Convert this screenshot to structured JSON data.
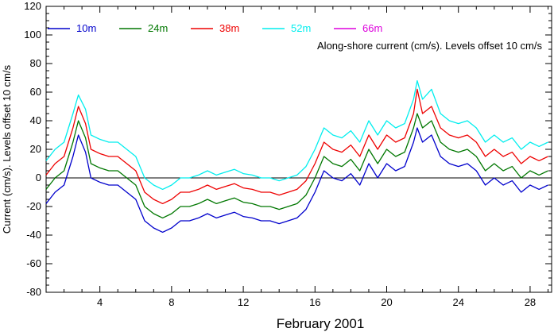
{
  "chart_data": {
    "type": "line",
    "title": "",
    "annotation": "Along-shore current (cm/s). Levels offset 10 cm/s",
    "xlabel": "February 2001",
    "ylabel": "Current (cm/s). Levels offset 10 cm/s",
    "xlim": [
      1,
      29.2
    ],
    "ylim": [
      -80,
      120
    ],
    "x_ticks": [
      4,
      8,
      12,
      16,
      20,
      24,
      28
    ],
    "y_ticks": [
      -80,
      -60,
      -40,
      -20,
      0,
      20,
      40,
      60,
      80,
      100,
      120
    ],
    "zero_line": 0,
    "grid": false,
    "legend_position": "top",
    "series": [
      {
        "name": "10m",
        "color": "#0000cc",
        "points": [
          [
            1.0,
            -18
          ],
          [
            1.5,
            -10
          ],
          [
            2.0,
            -5
          ],
          [
            2.5,
            15
          ],
          [
            2.8,
            30
          ],
          [
            3.2,
            18
          ],
          [
            3.5,
            0
          ],
          [
            4.0,
            -3
          ],
          [
            4.5,
            -5
          ],
          [
            5.0,
            -5
          ],
          [
            5.5,
            -10
          ],
          [
            6.0,
            -15
          ],
          [
            6.5,
            -30
          ],
          [
            7.0,
            -35
          ],
          [
            7.5,
            -38
          ],
          [
            8.0,
            -35
          ],
          [
            8.5,
            -30
          ],
          [
            9.0,
            -30
          ],
          [
            9.5,
            -28
          ],
          [
            10.0,
            -25
          ],
          [
            10.5,
            -28
          ],
          [
            11.0,
            -26
          ],
          [
            11.5,
            -24
          ],
          [
            12.0,
            -27
          ],
          [
            12.5,
            -28
          ],
          [
            13.0,
            -30
          ],
          [
            13.5,
            -30
          ],
          [
            14.0,
            -32
          ],
          [
            14.5,
            -30
          ],
          [
            15.0,
            -28
          ],
          [
            15.5,
            -22
          ],
          [
            16.0,
            -10
          ],
          [
            16.5,
            5
          ],
          [
            17.0,
            0
          ],
          [
            17.5,
            -2
          ],
          [
            18.0,
            3
          ],
          [
            18.5,
            -5
          ],
          [
            19.0,
            10
          ],
          [
            19.5,
            0
          ],
          [
            20.0,
            10
          ],
          [
            20.5,
            5
          ],
          [
            21.0,
            8
          ],
          [
            21.5,
            25
          ],
          [
            21.7,
            35
          ],
          [
            22.0,
            25
          ],
          [
            22.5,
            30
          ],
          [
            23.0,
            15
          ],
          [
            23.5,
            10
          ],
          [
            24.0,
            8
          ],
          [
            24.5,
            10
          ],
          [
            25.0,
            5
          ],
          [
            25.5,
            -5
          ],
          [
            26.0,
            0
          ],
          [
            26.5,
            -5
          ],
          [
            27.0,
            -2
          ],
          [
            27.5,
            -10
          ],
          [
            28.0,
            -5
          ],
          [
            28.5,
            -8
          ],
          [
            29.0,
            -5
          ]
        ]
      },
      {
        "name": "24m",
        "color": "#007700",
        "points": [
          [
            1.0,
            -8
          ],
          [
            1.5,
            0
          ],
          [
            2.0,
            5
          ],
          [
            2.5,
            25
          ],
          [
            2.8,
            40
          ],
          [
            3.2,
            28
          ],
          [
            3.5,
            10
          ],
          [
            4.0,
            7
          ],
          [
            4.5,
            5
          ],
          [
            5.0,
            5
          ],
          [
            5.5,
            0
          ],
          [
            6.0,
            -5
          ],
          [
            6.5,
            -20
          ],
          [
            7.0,
            -25
          ],
          [
            7.5,
            -28
          ],
          [
            8.0,
            -25
          ],
          [
            8.5,
            -20
          ],
          [
            9.0,
            -20
          ],
          [
            9.5,
            -18
          ],
          [
            10.0,
            -15
          ],
          [
            10.5,
            -18
          ],
          [
            11.0,
            -16
          ],
          [
            11.5,
            -14
          ],
          [
            12.0,
            -17
          ],
          [
            12.5,
            -18
          ],
          [
            13.0,
            -20
          ],
          [
            13.5,
            -20
          ],
          [
            14.0,
            -22
          ],
          [
            14.5,
            -20
          ],
          [
            15.0,
            -18
          ],
          [
            15.5,
            -12
          ],
          [
            16.0,
            0
          ],
          [
            16.5,
            15
          ],
          [
            17.0,
            10
          ],
          [
            17.5,
            8
          ],
          [
            18.0,
            13
          ],
          [
            18.5,
            5
          ],
          [
            19.0,
            20
          ],
          [
            19.5,
            10
          ],
          [
            20.0,
            20
          ],
          [
            20.5,
            15
          ],
          [
            21.0,
            18
          ],
          [
            21.5,
            35
          ],
          [
            21.7,
            45
          ],
          [
            22.0,
            35
          ],
          [
            22.5,
            40
          ],
          [
            23.0,
            25
          ],
          [
            23.5,
            20
          ],
          [
            24.0,
            18
          ],
          [
            24.5,
            20
          ],
          [
            25.0,
            15
          ],
          [
            25.5,
            5
          ],
          [
            26.0,
            10
          ],
          [
            26.5,
            5
          ],
          [
            27.0,
            8
          ],
          [
            27.5,
            0
          ],
          [
            28.0,
            5
          ],
          [
            28.5,
            2
          ],
          [
            29.0,
            5
          ]
        ]
      },
      {
        "name": "38m",
        "color": "#ee0000",
        "points": [
          [
            1.0,
            2
          ],
          [
            1.5,
            10
          ],
          [
            2.0,
            15
          ],
          [
            2.5,
            35
          ],
          [
            2.8,
            50
          ],
          [
            3.2,
            38
          ],
          [
            3.5,
            20
          ],
          [
            4.0,
            17
          ],
          [
            4.5,
            15
          ],
          [
            5.0,
            15
          ],
          [
            5.5,
            10
          ],
          [
            6.0,
            5
          ],
          [
            6.5,
            -10
          ],
          [
            7.0,
            -15
          ],
          [
            7.5,
            -18
          ],
          [
            8.0,
            -15
          ],
          [
            8.5,
            -10
          ],
          [
            9.0,
            -10
          ],
          [
            9.5,
            -8
          ],
          [
            10.0,
            -5
          ],
          [
            10.5,
            -8
          ],
          [
            11.0,
            -6
          ],
          [
            11.5,
            -4
          ],
          [
            12.0,
            -7
          ],
          [
            12.5,
            -8
          ],
          [
            13.0,
            -10
          ],
          [
            13.5,
            -10
          ],
          [
            14.0,
            -12
          ],
          [
            14.5,
            -10
          ],
          [
            15.0,
            -8
          ],
          [
            15.5,
            -2
          ],
          [
            16.0,
            10
          ],
          [
            16.5,
            25
          ],
          [
            17.0,
            20
          ],
          [
            17.5,
            18
          ],
          [
            18.0,
            23
          ],
          [
            18.5,
            15
          ],
          [
            19.0,
            30
          ],
          [
            19.5,
            20
          ],
          [
            20.0,
            30
          ],
          [
            20.5,
            25
          ],
          [
            21.0,
            28
          ],
          [
            21.5,
            45
          ],
          [
            21.7,
            62
          ],
          [
            22.0,
            45
          ],
          [
            22.5,
            50
          ],
          [
            23.0,
            35
          ],
          [
            23.5,
            30
          ],
          [
            24.0,
            28
          ],
          [
            24.5,
            30
          ],
          [
            25.0,
            25
          ],
          [
            25.5,
            15
          ],
          [
            26.0,
            20
          ],
          [
            26.5,
            15
          ],
          [
            27.0,
            18
          ],
          [
            27.5,
            10
          ],
          [
            28.0,
            15
          ],
          [
            28.5,
            12
          ],
          [
            29.0,
            15
          ]
        ]
      },
      {
        "name": "52m",
        "color": "#00eeee",
        "points": [
          [
            1.0,
            12
          ],
          [
            1.5,
            20
          ],
          [
            2.0,
            25
          ],
          [
            2.5,
            45
          ],
          [
            2.8,
            58
          ],
          [
            3.2,
            48
          ],
          [
            3.5,
            30
          ],
          [
            4.0,
            27
          ],
          [
            4.5,
            25
          ],
          [
            5.0,
            25
          ],
          [
            5.5,
            20
          ],
          [
            6.0,
            15
          ],
          [
            6.5,
            0
          ],
          [
            7.0,
            -5
          ],
          [
            7.5,
            -8
          ],
          [
            8.0,
            -5
          ],
          [
            8.5,
            0
          ],
          [
            9.0,
            0
          ],
          [
            9.5,
            2
          ],
          [
            10.0,
            5
          ],
          [
            10.5,
            2
          ],
          [
            11.0,
            4
          ],
          [
            11.5,
            6
          ],
          [
            12.0,
            3
          ],
          [
            12.5,
            2
          ],
          [
            13.0,
            0
          ],
          [
            13.5,
            0
          ],
          [
            14.0,
            -2
          ],
          [
            14.5,
            0
          ],
          [
            15.0,
            2
          ],
          [
            15.5,
            8
          ],
          [
            16.0,
            20
          ],
          [
            16.5,
            35
          ],
          [
            17.0,
            30
          ],
          [
            17.5,
            28
          ],
          [
            18.0,
            33
          ],
          [
            18.5,
            25
          ],
          [
            19.0,
            40
          ],
          [
            19.5,
            30
          ],
          [
            20.0,
            40
          ],
          [
            20.5,
            35
          ],
          [
            21.0,
            38
          ],
          [
            21.5,
            55
          ],
          [
            21.7,
            68
          ],
          [
            22.0,
            55
          ],
          [
            22.5,
            62
          ],
          [
            23.0,
            45
          ],
          [
            23.5,
            40
          ],
          [
            24.0,
            38
          ],
          [
            24.5,
            40
          ],
          [
            25.0,
            35
          ],
          [
            25.5,
            25
          ],
          [
            26.0,
            30
          ],
          [
            26.5,
            25
          ],
          [
            27.0,
            28
          ],
          [
            27.5,
            20
          ],
          [
            28.0,
            25
          ],
          [
            28.5,
            22
          ],
          [
            29.0,
            25
          ]
        ]
      },
      {
        "name": "66m",
        "color": "#dd00dd",
        "points": []
      }
    ]
  }
}
